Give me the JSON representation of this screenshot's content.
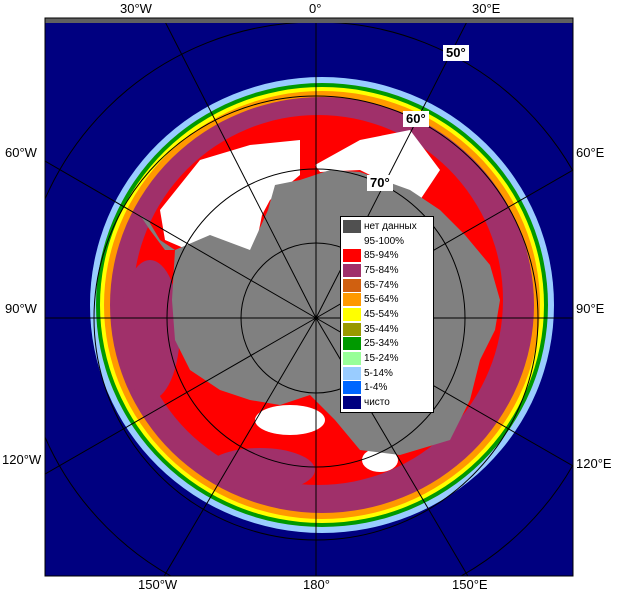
{
  "map": {
    "longitude_labels_top": [
      "30°W",
      "0°",
      "30°E"
    ],
    "longitude_labels_left": [
      "60°W",
      "90°W",
      "120°W"
    ],
    "longitude_labels_right": [
      "60°E",
      "90°E",
      "120°E"
    ],
    "longitude_labels_bottom": [
      "150°W",
      "180°",
      "150°E"
    ],
    "latitude_labels": [
      "50°",
      "60°",
      "70°"
    ],
    "colors": {
      "ocean": "#000080",
      "land": "#808080",
      "frame_dark": "#606060",
      "grid": "#000000"
    }
  },
  "legend": {
    "items": [
      {
        "label": "нет данных",
        "color": "#505050"
      },
      {
        "label": "95-100%",
        "color": "#ffffff"
      },
      {
        "label": "85-94%",
        "color": "#ff0000"
      },
      {
        "label": "75-84%",
        "color": "#a0306a"
      },
      {
        "label": "65-74%",
        "color": "#d06010"
      },
      {
        "label": "55-64%",
        "color": "#ff9900"
      },
      {
        "label": "45-54%",
        "color": "#ffff00"
      },
      {
        "label": "35-44%",
        "color": "#999900"
      },
      {
        "label": "25-34%",
        "color": "#009900"
      },
      {
        "label": "15-24%",
        "color": "#99ff99"
      },
      {
        "label": "5-14%",
        "color": "#99ccff"
      },
      {
        "label": "1-4%",
        "color": "#0066ff"
      },
      {
        "label": "чисто",
        "color": "#000080"
      }
    ]
  }
}
